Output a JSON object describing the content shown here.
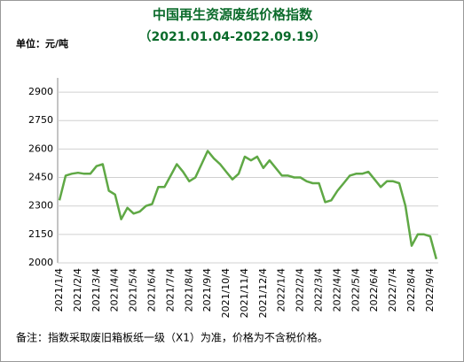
{
  "chart_data": {
    "type": "line",
    "title": "中国再生资源废纸价格指数",
    "subtitle": "（2021.01.04-2022.09.19）",
    "unit_label": "单位：元/吨",
    "note": "备注：指数采取废旧箱板纸一级（X1）为准，价格为不含税价格。",
    "categories": [
      "2021/1/4",
      null,
      null,
      "2021/2/4",
      null,
      null,
      "2021/3/4",
      null,
      null,
      "2021/4/4",
      null,
      null,
      "2021/5/4",
      null,
      null,
      "2021/6/4",
      null,
      null,
      "2021/7/4",
      null,
      null,
      "2021/8/4",
      null,
      null,
      "2021/9/4",
      null,
      null,
      "2021/10/4",
      null,
      null,
      "2021/11/4",
      null,
      null,
      "2021/12/4",
      null,
      null,
      "2022/1/4",
      null,
      null,
      "2022/2/4",
      null,
      null,
      "2022/3/4",
      null,
      null,
      "2022/4/4",
      null,
      null,
      "2022/5/4",
      null,
      null,
      "2022/6/4",
      null,
      null,
      "2022/7/4",
      null,
      null,
      "2022/8/4",
      null,
      null,
      "2022/9/4",
      null
    ],
    "values": [
      2330,
      2460,
      2470,
      2475,
      2470,
      2470,
      2510,
      2520,
      2380,
      2360,
      2230,
      2290,
      2260,
      2270,
      2300,
      2310,
      2400,
      2400,
      2460,
      2520,
      2480,
      2430,
      2450,
      2520,
      2590,
      2550,
      2520,
      2480,
      2440,
      2470,
      2560,
      2540,
      2560,
      2500,
      2540,
      2500,
      2460,
      2460,
      2450,
      2450,
      2430,
      2420,
      2420,
      2320,
      2330,
      2380,
      2420,
      2460,
      2470,
      2470,
      2480,
      2440,
      2400,
      2430,
      2430,
      2420,
      2300,
      2090,
      2150,
      2150,
      2140,
      2020
    ],
    "color": "#5fa845",
    "ylim": [
      2000,
      2975
    ],
    "yticks": [
      2000,
      2150,
      2300,
      2450,
      2600,
      2750,
      2900
    ],
    "grid": true
  }
}
